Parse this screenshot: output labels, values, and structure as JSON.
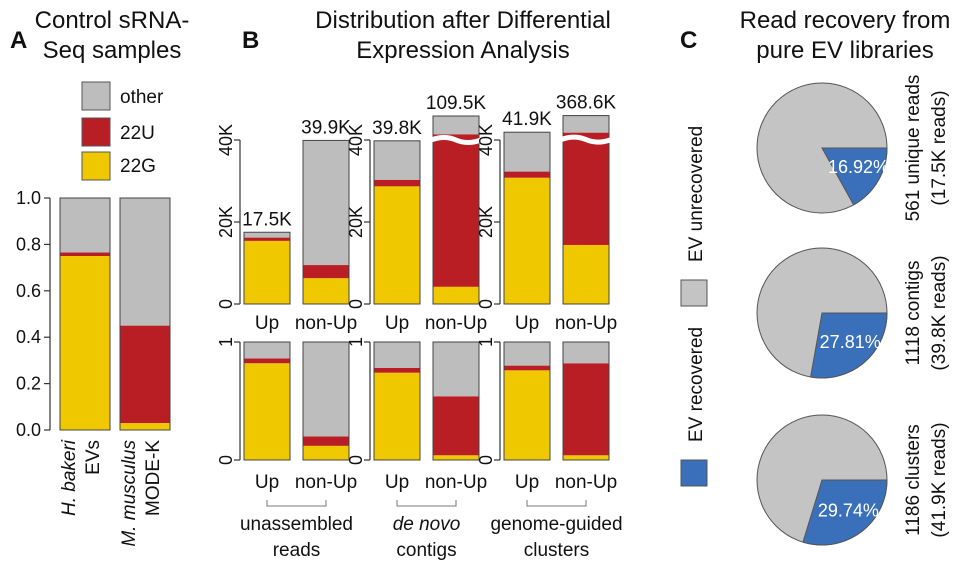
{
  "colors": {
    "other": "#bdbdbd",
    "22U": "#b81e24",
    "22G": "#f0c800",
    "ev_unrecovered": "#c4c4c4",
    "ev_recovered": "#3a70b9"
  },
  "panels": {
    "A": {
      "letter": "A",
      "title_lines": [
        "Control sRNA-",
        "Seq samples"
      ]
    },
    "B": {
      "letter": "B",
      "title_lines": [
        "Distribution after Differential",
        "Expression Analysis"
      ]
    },
    "C": {
      "letter": "C",
      "title_lines": [
        "Read recovery from",
        "pure EV libraries"
      ]
    }
  },
  "legend_A": [
    "other",
    "22U",
    "22G"
  ],
  "legend_C": [
    "EV unrecovered",
    "EV recovered"
  ],
  "chart_data": [
    {
      "type": "bar",
      "id": "A",
      "stacked": true,
      "categories": [
        "H. bakeri EVs",
        "M. musculus MODE-K"
      ],
      "category_lines": [
        [
          "H. bakeri",
          "EVs"
        ],
        [
          "M. musculus",
          "MODE-K"
        ]
      ],
      "series": [
        {
          "name": "22G",
          "values": [
            0.75,
            0.03
          ]
        },
        {
          "name": "22U",
          "values": [
            0.015,
            0.42
          ]
        },
        {
          "name": "other",
          "values": [
            0.235,
            0.55
          ]
        }
      ],
      "ylim": [
        0,
        1
      ],
      "yticks": [
        "0.0",
        "0.2",
        "0.4",
        "0.6",
        "0.8",
        "1.0"
      ]
    },
    {
      "type": "bar",
      "id": "B-counts",
      "stacked": true,
      "yticks": [
        "0",
        "20K",
        "40K"
      ],
      "ylim": [
        0,
        40000
      ],
      "groups": [
        {
          "name": "unassembled reads",
          "name_lines": [
            "unassembled",
            "reads"
          ],
          "categories": [
            "Up",
            "non-Up"
          ],
          "totals_label": [
            "17.5K",
            "39.9K"
          ],
          "broken": [
            false,
            false
          ],
          "series": [
            {
              "name": "22G",
              "values": [
                15400,
                6300
              ]
            },
            {
              "name": "22U",
              "values": [
                800,
                3200
              ]
            },
            {
              "name": "other",
              "values": [
                1300,
                30400
              ]
            }
          ]
        },
        {
          "name": "de novo contigs",
          "name_lines": [
            "de novo",
            "contigs"
          ],
          "categories": [
            "Up",
            "non-Up"
          ],
          "totals_label": [
            "39.8K",
            "109.5K"
          ],
          "broken": [
            false,
            true
          ],
          "series": [
            {
              "name": "22G",
              "values": [
                28700,
                4200
              ]
            },
            {
              "name": "22U",
              "values": [
                1600,
                37200
              ]
            },
            {
              "name": "other",
              "values": [
                9500,
                2500
              ]
            }
          ]
        },
        {
          "name": "genome-guided clusters",
          "name_lines": [
            "genome-guided",
            "clusters"
          ],
          "categories": [
            "Up",
            "non-Up"
          ],
          "totals_label": [
            "41.9K",
            "368.6K"
          ],
          "broken": [
            false,
            true
          ],
          "series": [
            {
              "name": "22G",
              "values": [
                30800,
                14400
              ]
            },
            {
              "name": "22U",
              "values": [
                1500,
                27400
              ]
            },
            {
              "name": "other",
              "values": [
                9600,
                2200
              ]
            }
          ]
        }
      ]
    },
    {
      "type": "bar",
      "id": "B-fractions",
      "stacked": true,
      "yticks": [
        "0",
        "1"
      ],
      "ylim": [
        0,
        1
      ],
      "groups": [
        {
          "name": "unassembled reads",
          "categories": [
            "Up",
            "non-Up"
          ],
          "series": [
            {
              "name": "22G",
              "values": [
                0.82,
                0.12
              ]
            },
            {
              "name": "22U",
              "values": [
                0.04,
                0.08
              ]
            },
            {
              "name": "other",
              "values": [
                0.14,
                0.8
              ]
            }
          ]
        },
        {
          "name": "de novo contigs",
          "categories": [
            "Up",
            "non-Up"
          ],
          "series": [
            {
              "name": "22G",
              "values": [
                0.74,
                0.04
              ]
            },
            {
              "name": "22U",
              "values": [
                0.04,
                0.5
              ]
            },
            {
              "name": "other",
              "values": [
                0.22,
                0.46
              ]
            }
          ]
        },
        {
          "name": "genome-guided clusters",
          "categories": [
            "Up",
            "non-Up"
          ],
          "series": [
            {
              "name": "22G",
              "values": [
                0.76,
                0.04
              ]
            },
            {
              "name": "22U",
              "values": [
                0.04,
                0.78
              ]
            },
            {
              "name": "other",
              "values": [
                0.2,
                0.18
              ]
            }
          ]
        }
      ]
    },
    {
      "type": "pie",
      "id": "C",
      "pies": [
        {
          "label_lines": [
            "561 unique reads",
            "(17.5K reads)"
          ],
          "recovered": 16.92,
          "recovered_label": "16.92%"
        },
        {
          "label_lines": [
            "1118 contigs",
            "(39.8K reads)"
          ],
          "recovered": 27.81,
          "recovered_label": "27.81%"
        },
        {
          "label_lines": [
            "1186 clusters",
            "(41.9K reads)"
          ],
          "recovered": 29.74,
          "recovered_label": "29.74%"
        }
      ],
      "series": [
        {
          "name": "EV unrecovered"
        },
        {
          "name": "EV recovered"
        }
      ]
    }
  ]
}
